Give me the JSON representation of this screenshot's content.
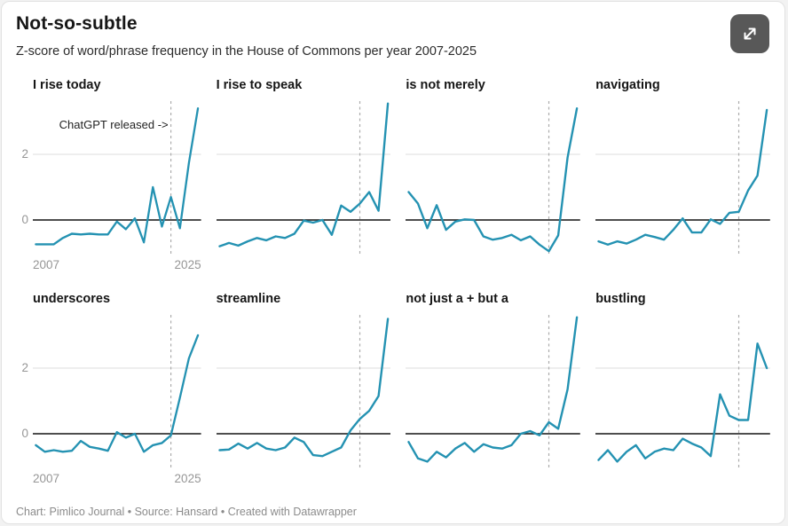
{
  "header": {
    "title": "Not-so-subtle",
    "subtitle": "Z-score of word/phrase frequency in the House of Commons per year 2007-2025"
  },
  "toolbar": {
    "expand_icon": "expand-arrows-icon",
    "expand_button_color": "#585858"
  },
  "chart_data": {
    "type": "line",
    "layout": "small-multiples-2x4",
    "line_color": "#2492b2",
    "x": [
      2007,
      2008,
      2009,
      2010,
      2011,
      2012,
      2013,
      2014,
      2015,
      2016,
      2017,
      2018,
      2019,
      2020,
      2021,
      2022,
      2023,
      2024,
      2025
    ],
    "x_axis_labels": [
      "2007",
      "2025"
    ],
    "y_ticks": [
      "2",
      "0"
    ],
    "ylim": [
      -1.05,
      3.65
    ],
    "grid": "horizontal-at-2-and-0",
    "event_line": {
      "x": 2022,
      "style": "dashed",
      "note": "vertical dashed rule in every panel"
    },
    "annotation": {
      "panel_index": 0,
      "text": "ChatGPT released ->"
    },
    "panels": [
      {
        "title": "I rise today",
        "values": [
          -0.74,
          -0.74,
          -0.74,
          -0.55,
          -0.42,
          -0.44,
          -0.42,
          -0.44,
          -0.44,
          -0.05,
          -0.28,
          0.05,
          -0.68,
          1.0,
          -0.2,
          0.7,
          -0.25,
          1.74,
          3.4
        ]
      },
      {
        "title": "I rise to speak",
        "values": [
          -0.8,
          -0.7,
          -0.78,
          -0.65,
          -0.55,
          -0.62,
          -0.5,
          -0.55,
          -0.42,
          -0.02,
          -0.08,
          0.0,
          -0.45,
          0.44,
          0.25,
          0.5,
          0.85,
          0.28,
          3.55
        ]
      },
      {
        "title": "is not merely",
        "values": [
          0.85,
          0.5,
          -0.25,
          0.45,
          -0.3,
          -0.05,
          0.02,
          0.0,
          -0.5,
          -0.6,
          -0.55,
          -0.45,
          -0.62,
          -0.5,
          -0.75,
          -0.95,
          -0.47,
          1.9,
          3.4
        ]
      },
      {
        "title": "navigating",
        "values": [
          -0.65,
          -0.75,
          -0.65,
          -0.72,
          -0.6,
          -0.45,
          -0.52,
          -0.6,
          -0.3,
          0.05,
          -0.38,
          -0.38,
          0.02,
          -0.12,
          0.22,
          0.25,
          0.9,
          1.35,
          3.35
        ]
      },
      {
        "title": "underscores",
        "values": [
          -0.35,
          -0.55,
          -0.5,
          -0.55,
          -0.52,
          -0.22,
          -0.4,
          -0.45,
          -0.52,
          0.05,
          -0.12,
          0.0,
          -0.55,
          -0.35,
          -0.28,
          -0.05,
          1.1,
          2.3,
          3.0
        ]
      },
      {
        "title": "streamline",
        "values": [
          -0.5,
          -0.48,
          -0.3,
          -0.45,
          -0.28,
          -0.45,
          -0.5,
          -0.42,
          -0.12,
          -0.25,
          -0.65,
          -0.68,
          -0.55,
          -0.42,
          0.1,
          0.45,
          0.7,
          1.15,
          3.5
        ]
      },
      {
        "title": "not just a + but a",
        "values": [
          -0.25,
          -0.75,
          -0.85,
          -0.55,
          -0.72,
          -0.45,
          -0.28,
          -0.55,
          -0.32,
          -0.42,
          -0.45,
          -0.35,
          0.0,
          0.08,
          -0.05,
          0.35,
          0.15,
          1.35,
          3.55
        ]
      },
      {
        "title": "bustling",
        "values": [
          -0.8,
          -0.5,
          -0.85,
          -0.55,
          -0.35,
          -0.75,
          -0.55,
          -0.45,
          -0.5,
          -0.15,
          -0.3,
          -0.42,
          -0.68,
          1.2,
          0.55,
          0.42,
          0.42,
          2.75,
          2.0
        ]
      }
    ]
  },
  "footer": {
    "credit": "Chart: Pimlico Journal • Source: Hansard • Created with Datawrapper"
  }
}
